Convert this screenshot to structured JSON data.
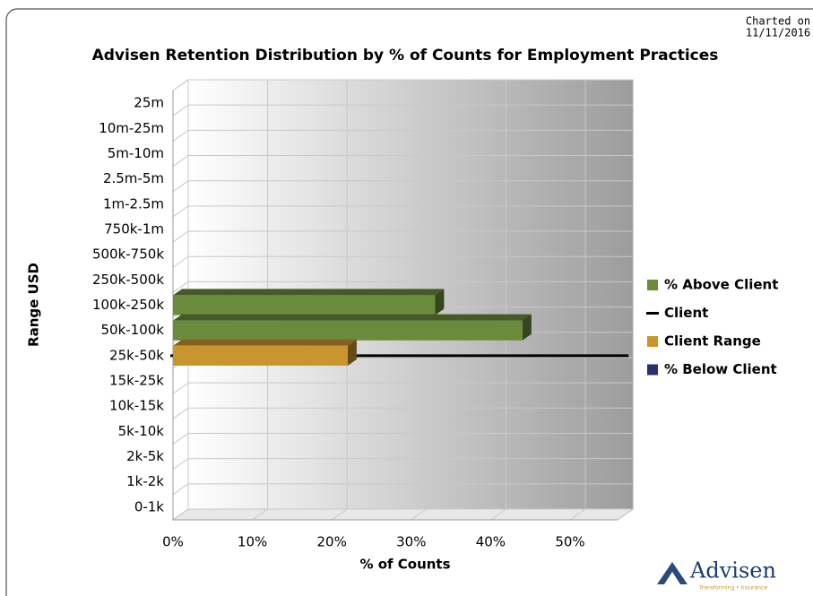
{
  "chart_data": {
    "type": "bar3d_horizontal",
    "title": "Advisen Retention Distribution by % of Counts for Employment Practices",
    "charted_on": [
      "Charted on",
      "11/11/2016"
    ],
    "xlabel": "% of Counts",
    "ylabel": "Range USD",
    "logo": "Advisen",
    "tagline": "Transforming • Insurance",
    "categories": [
      "25m",
      "10m-25m",
      "5m-10m",
      "2.5m-5m",
      "1m-2.5m",
      "750k-1m",
      "500k-750k",
      "250k-500k",
      "100k-250k",
      "50k-100k",
      "25k-50k",
      "15k-25k",
      "10k-15k",
      "5k-10k",
      "2k-5k",
      "1k-2k",
      "0-1k"
    ],
    "series": [
      {
        "name": "% Above Client",
        "color": "#6a8a3c",
        "values": [
          null,
          null,
          null,
          null,
          null,
          null,
          null,
          null,
          33,
          44,
          null,
          null,
          null,
          null,
          null,
          null,
          null
        ]
      },
      {
        "name": "Client",
        "color": "#000000",
        "marker": "line",
        "category": "25k-50k"
      },
      {
        "name": "Client Range",
        "color": "#c8952e",
        "values": [
          null,
          null,
          null,
          null,
          null,
          null,
          null,
          null,
          null,
          null,
          22,
          null,
          null,
          null,
          null,
          null,
          null
        ]
      },
      {
        "name": "% Below Client",
        "color": "#283070",
        "values": [
          null,
          null,
          null,
          null,
          null,
          null,
          null,
          null,
          null,
          null,
          null,
          null,
          null,
          null,
          null,
          null,
          null
        ]
      }
    ],
    "xlim": [
      0,
      56
    ],
    "xticks": [
      {
        "value": 0,
        "label": "0%"
      },
      {
        "value": 10,
        "label": "10%"
      },
      {
        "value": 20,
        "label": "20%"
      },
      {
        "value": 30,
        "label": "30%"
      },
      {
        "value": 40,
        "label": "40%"
      },
      {
        "value": 50,
        "label": "50%"
      }
    ],
    "grid": true,
    "legend": "right"
  }
}
